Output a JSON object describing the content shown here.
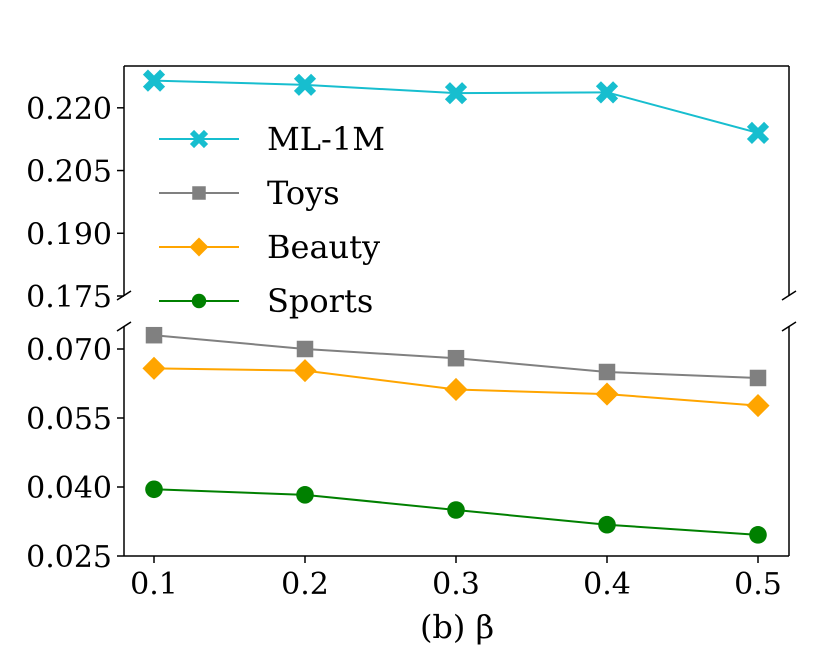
{
  "chart_data": {
    "type": "line",
    "title": "",
    "xlabel": "(b) β",
    "ylabel": "",
    "x": [
      0.1,
      0.2,
      0.3,
      0.4,
      0.5
    ],
    "x_tick_labels": [
      "0.1",
      "0.2",
      "0.3",
      "0.4",
      "0.5"
    ],
    "broken_axis": true,
    "upper_panel": {
      "ylim": [
        0.175,
        0.23
      ],
      "y_ticks": [
        0.175,
        0.19,
        0.205,
        0.22
      ],
      "y_tick_labels": [
        "0.175",
        "0.190",
        "0.205",
        "0.220"
      ]
    },
    "lower_panel": {
      "ylim": [
        0.025,
        0.075
      ],
      "y_ticks": [
        0.025,
        0.04,
        0.055,
        0.07
      ],
      "y_tick_labels": [
        "0.025",
        "0.040",
        "0.055",
        "0.070"
      ]
    },
    "series": [
      {
        "name": "ML-1M",
        "panel": "upper",
        "color": "#17becf",
        "marker": "x-filled",
        "values": [
          0.2265,
          0.2255,
          0.2235,
          0.2237,
          0.214
        ]
      },
      {
        "name": "Toys",
        "panel": "lower",
        "color": "#808080",
        "marker": "square",
        "values": [
          0.073,
          0.07,
          0.068,
          0.065,
          0.0637
        ]
      },
      {
        "name": "Beauty",
        "panel": "lower",
        "color": "#ffa500",
        "marker": "diamond",
        "values": [
          0.0658,
          0.0653,
          0.0612,
          0.0602,
          0.0577
        ]
      },
      {
        "name": "Sports",
        "panel": "lower",
        "color": "#008000",
        "marker": "circle",
        "values": [
          0.0395,
          0.0383,
          0.035,
          0.0318,
          0.0296
        ]
      }
    ],
    "legend": {
      "position": "top-left",
      "entries": [
        "ML-1M",
        "Toys",
        "Beauty",
        "Sports"
      ]
    }
  }
}
